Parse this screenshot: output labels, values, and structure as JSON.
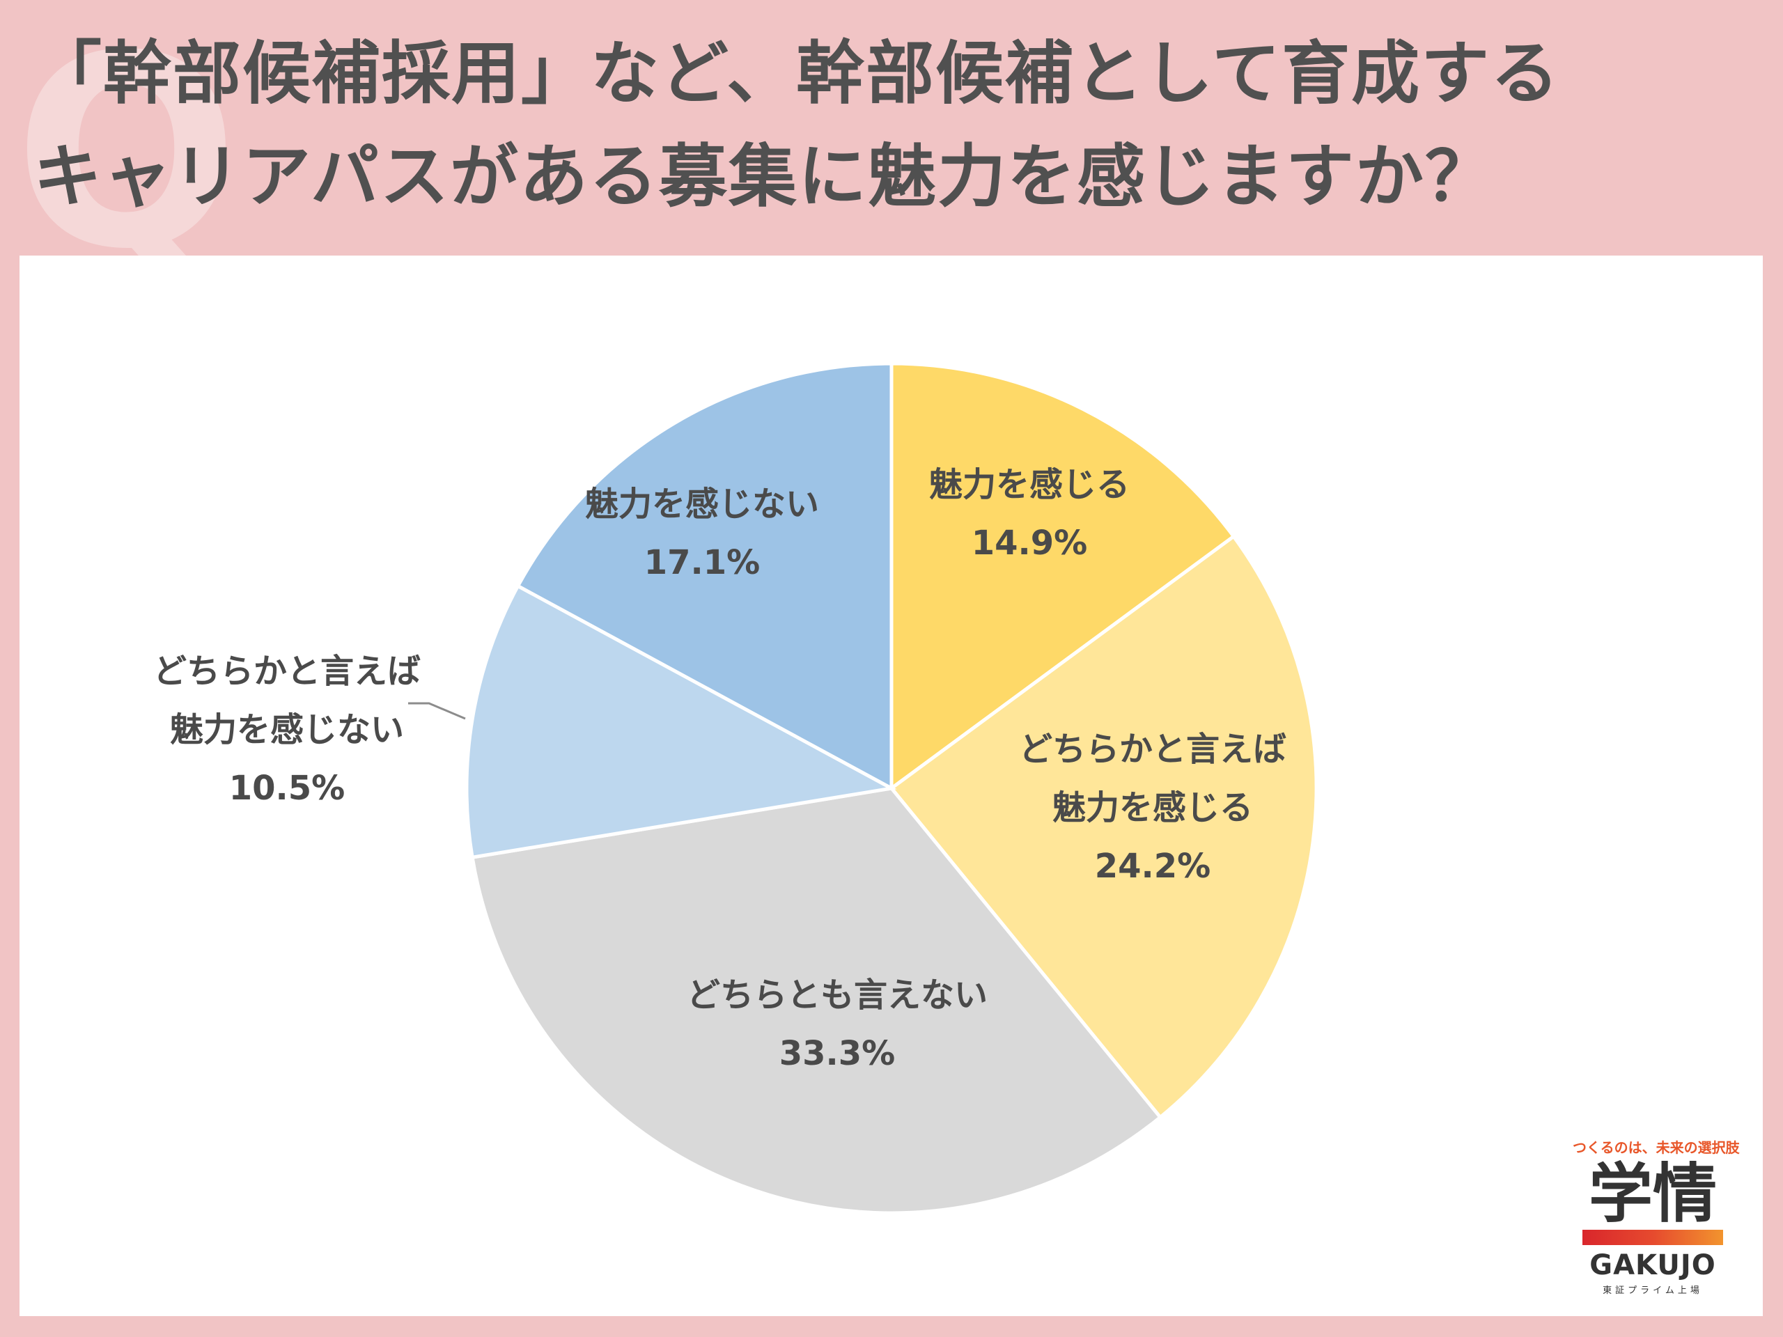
{
  "header": {
    "q_mark": "Q",
    "title_line1": "「幹部候補採用」など、幹部候補として育成する",
    "title_line2": "キャリアパスがある募集に魅力を感じますか？"
  },
  "chart_data": {
    "type": "pie",
    "start_angle_deg": 0,
    "direction": "clockwise",
    "slices": [
      {
        "label_lines": [
          "魅力を感じる"
        ],
        "value": 14.9,
        "value_label": "14.9%",
        "color": "#fed968"
      },
      {
        "label_lines": [
          "どちらかと言えば",
          "魅力を感じる"
        ],
        "value": 24.2,
        "value_label": "24.2%",
        "color": "#ffe699"
      },
      {
        "label_lines": [
          "どちらとも言えない"
        ],
        "value": 33.3,
        "value_label": "33.3%",
        "color": "#d9d9d9"
      },
      {
        "label_lines": [
          "どちらかと言えば",
          "魅力を感じない"
        ],
        "value": 10.5,
        "value_label": "10.5%",
        "color": "#bdd7ee"
      },
      {
        "label_lines": [
          "魅力を感じない"
        ],
        "value": 17.1,
        "value_label": "17.1%",
        "color": "#9dc3e6"
      }
    ]
  },
  "logo": {
    "tagline": "つくるのは、未来の選択肢",
    "kanji": "学情",
    "name": "GAKUJO",
    "sub": "東証プライム上場"
  }
}
